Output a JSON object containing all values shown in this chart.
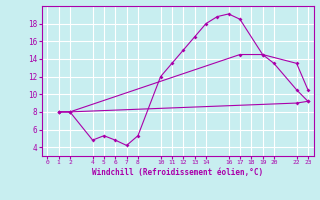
{
  "bg_color": "#c8eef0",
  "line_color": "#aa00aa",
  "grid_color": "#ffffff",
  "xlabel": "Windchill (Refroidissement éolien,°C)",
  "xlim": [
    -0.5,
    23.5
  ],
  "ylim": [
    3.0,
    20.0
  ],
  "xticks": [
    0,
    1,
    2,
    4,
    5,
    6,
    7,
    8,
    10,
    11,
    12,
    13,
    14,
    16,
    17,
    18,
    19,
    20,
    22,
    23
  ],
  "yticks": [
    4,
    6,
    8,
    10,
    12,
    14,
    16,
    18
  ],
  "line1_x": [
    1,
    2,
    4,
    5,
    6,
    7,
    8,
    10,
    11,
    12,
    13,
    14,
    15,
    16,
    17,
    19,
    20,
    22,
    23
  ],
  "line1_y": [
    8.0,
    8.0,
    4.8,
    5.3,
    4.8,
    4.2,
    5.3,
    12.0,
    13.5,
    15.0,
    16.5,
    18.0,
    18.8,
    19.1,
    18.5,
    14.5,
    13.5,
    10.5,
    9.2
  ],
  "line2_x": [
    1,
    2,
    22,
    23
  ],
  "line2_y": [
    8.0,
    8.0,
    9.0,
    9.2
  ],
  "line3_x": [
    1,
    2,
    17,
    19,
    22,
    23
  ],
  "line3_y": [
    8.0,
    8.0,
    14.5,
    14.5,
    13.5,
    10.5
  ]
}
